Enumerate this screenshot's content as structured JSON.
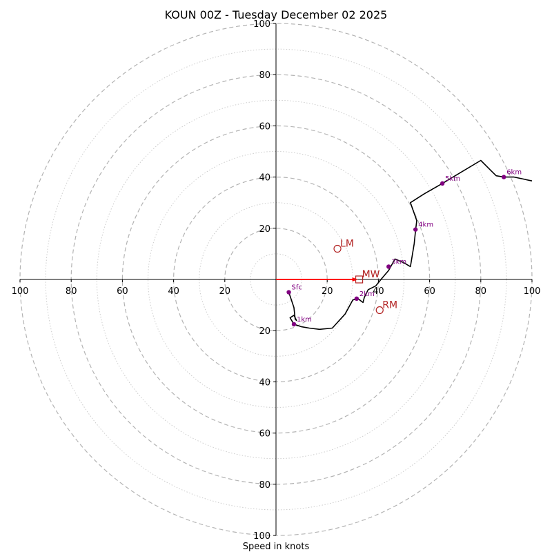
{
  "chart_data": {
    "type": "hodograph",
    "title": "KOUN 00Z - Tuesday December 02 2025",
    "xlabel": "Speed in knots",
    "units": "knots",
    "range": [
      -100,
      100
    ],
    "tick_labels": [
      "100",
      "80",
      "60",
      "40",
      "20",
      "20",
      "40",
      "60",
      "80",
      "100"
    ],
    "tick_values": [
      -100,
      -80,
      -60,
      -40,
      -20,
      20,
      40,
      60,
      80,
      100
    ],
    "rings_dashed": [
      20,
      40,
      60,
      80,
      100
    ],
    "rings_dotted": [
      10,
      30,
      50,
      70,
      90
    ],
    "trace": [
      [
        5,
        -5
      ],
      [
        7,
        -11
      ],
      [
        7.5,
        -15.5
      ],
      [
        8,
        -16
      ],
      [
        7,
        -14
      ],
      [
        5.5,
        -15
      ],
      [
        7,
        -17.5
      ],
      [
        10,
        -18.5
      ],
      [
        13,
        -19
      ],
      [
        17,
        -19.5
      ],
      [
        22,
        -19
      ],
      [
        27,
        -13.5
      ],
      [
        30,
        -8
      ],
      [
        32,
        -7.5
      ],
      [
        34,
        -9
      ],
      [
        34.5,
        -7
      ],
      [
        36,
        -4
      ],
      [
        39,
        -2.5
      ],
      [
        41,
        0
      ],
      [
        44,
        3.5
      ],
      [
        46.5,
        8
      ],
      [
        50,
        6.5
      ],
      [
        52.5,
        5
      ],
      [
        54,
        14
      ],
      [
        54.5,
        19
      ],
      [
        55,
        23
      ],
      [
        52.5,
        30
      ],
      [
        58,
        33.5
      ],
      [
        65,
        37.5
      ],
      [
        70,
        40.5
      ],
      [
        80,
        46.5
      ],
      [
        84,
        42.5
      ],
      [
        86,
        40.5
      ],
      [
        89,
        40
      ],
      [
        93,
        40
      ],
      [
        100,
        38.5
      ]
    ],
    "height_markers": [
      {
        "label": "Sfc",
        "u": 5,
        "v": -5
      },
      {
        "label": "1km",
        "u": 7,
        "v": -17.5
      },
      {
        "label": "2km",
        "u": 31.5,
        "v": -7.5
      },
      {
        "label": "3km",
        "u": 44,
        "v": 5
      },
      {
        "label": "4km",
        "u": 54.5,
        "v": 19.5
      },
      {
        "label": "5km",
        "u": 65,
        "v": 37.5
      },
      {
        "label": "6km",
        "u": 89,
        "v": 40
      }
    ],
    "motions": [
      {
        "label": "LM",
        "u": 24,
        "v": 12,
        "marker": "circle"
      },
      {
        "label": "RM",
        "u": 40.5,
        "v": -12,
        "marker": "circle"
      },
      {
        "label": "MW",
        "u": 32.5,
        "v": 0,
        "marker": "square"
      }
    ],
    "shear_vector": {
      "from": [
        0,
        0
      ],
      "to": [
        32.5,
        0
      ]
    },
    "colors": {
      "trace": "#000000",
      "markers": "#800080",
      "motions": "#b22222",
      "shear": "#ff0000",
      "grid": "#b3b3b3"
    }
  }
}
